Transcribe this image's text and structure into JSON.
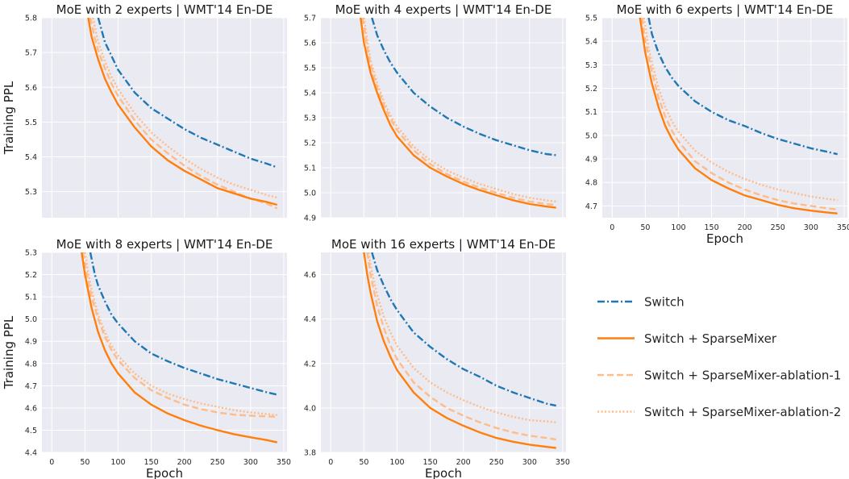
{
  "colors": {
    "switch": "#1f77b4",
    "sparsemixer": "#ff7f0e",
    "ablation1": "#ffbb88",
    "ablation2": "#ffbb88",
    "panel_bg": "#eaeaf2",
    "grid": "#ffffff"
  },
  "legend": {
    "entries": [
      {
        "label": "Switch",
        "style": "dashdot",
        "color_key": "switch"
      },
      {
        "label": "Switch + SparseMixer",
        "style": "solid",
        "color_key": "sparsemixer"
      },
      {
        "label": "Switch + SparseMixer-ablation-1",
        "style": "dashed",
        "color_key": "ablation1"
      },
      {
        "label": "Switch + SparseMixer-ablation-2",
        "style": "dotted",
        "color_key": "ablation2"
      }
    ]
  },
  "chart_data": [
    {
      "type": "line",
      "title": "MoE with 2 experts | WMT'14 En-DE",
      "xlabel": "",
      "ylabel": "Training PPL",
      "xlim": [
        -15,
        355
      ],
      "ylim": [
        5.225,
        5.8
      ],
      "xticks": [],
      "yticks": [
        5.3,
        5.4,
        5.5,
        5.6,
        5.7,
        5.8
      ],
      "ytick_labels": [
        "5.3",
        "5.4",
        "5.5",
        "5.6",
        "5.7",
        "5.8"
      ],
      "grid": true,
      "series": [
        {
          "name": "Switch",
          "x": [
            70,
            80,
            90,
            100,
            125,
            150,
            175,
            200,
            225,
            250,
            275,
            300,
            325,
            340
          ],
          "y": [
            5.8,
            5.73,
            5.69,
            5.65,
            5.585,
            5.54,
            5.51,
            5.48,
            5.455,
            5.435,
            5.415,
            5.395,
            5.38,
            5.37
          ]
        },
        {
          "name": "Switch + SparseMixer",
          "x": [
            55,
            60,
            70,
            80,
            90,
            100,
            125,
            150,
            175,
            200,
            225,
            250,
            275,
            300,
            325,
            340
          ],
          "y": [
            5.8,
            5.745,
            5.68,
            5.625,
            5.585,
            5.55,
            5.485,
            5.43,
            5.39,
            5.36,
            5.335,
            5.31,
            5.295,
            5.28,
            5.27,
            5.262
          ]
        },
        {
          "name": "Switch + SparseMixer-ablation-1",
          "x": [
            58,
            65,
            70,
            80,
            90,
            100,
            125,
            150,
            175,
            200,
            225,
            250,
            275,
            300,
            325,
            340
          ],
          "y": [
            5.8,
            5.74,
            5.705,
            5.655,
            5.61,
            5.575,
            5.505,
            5.45,
            5.41,
            5.375,
            5.345,
            5.32,
            5.3,
            5.28,
            5.265,
            5.252
          ]
        },
        {
          "name": "Switch + SparseMixer-ablation-2",
          "x": [
            62,
            70,
            80,
            90,
            100,
            125,
            150,
            175,
            200,
            225,
            250,
            275,
            300,
            325,
            340
          ],
          "y": [
            5.8,
            5.73,
            5.675,
            5.63,
            5.595,
            5.525,
            5.47,
            5.43,
            5.395,
            5.365,
            5.34,
            5.32,
            5.305,
            5.29,
            5.283
          ]
        }
      ]
    },
    {
      "type": "line",
      "title": "MoE with 4 experts | WMT'14 En-DE",
      "xlabel": "",
      "ylabel": "",
      "xlim": [
        -15,
        355
      ],
      "ylim": [
        4.9,
        5.7
      ],
      "xticks": [],
      "yticks": [
        4.9,
        5.0,
        5.1,
        5.2,
        5.3,
        5.4,
        5.5,
        5.6,
        5.7
      ],
      "ytick_labels": [
        "4.9",
        "5.0",
        "5.1",
        "5.2",
        "5.3",
        "5.4",
        "5.5",
        "5.6",
        "5.7"
      ],
      "grid": true,
      "series": [
        {
          "name": "Switch",
          "x": [
            62,
            70,
            80,
            90,
            100,
            125,
            150,
            175,
            200,
            225,
            250,
            275,
            300,
            325,
            340
          ],
          "y": [
            5.7,
            5.63,
            5.57,
            5.52,
            5.48,
            5.4,
            5.345,
            5.3,
            5.265,
            5.235,
            5.21,
            5.19,
            5.17,
            5.155,
            5.15
          ]
        },
        {
          "name": "Switch + SparseMixer",
          "x": [
            45,
            50,
            60,
            70,
            80,
            90,
            100,
            125,
            150,
            175,
            200,
            225,
            250,
            275,
            300,
            325,
            340
          ],
          "y": [
            5.7,
            5.6,
            5.48,
            5.4,
            5.33,
            5.27,
            5.225,
            5.15,
            5.1,
            5.065,
            5.035,
            5.01,
            4.99,
            4.97,
            4.955,
            4.945,
            4.94
          ]
        },
        {
          "name": "Switch + SparseMixer-ablation-1",
          "x": [
            48,
            55,
            60,
            70,
            80,
            90,
            100,
            125,
            150,
            175,
            200,
            225,
            250,
            275,
            300,
            325,
            340
          ],
          "y": [
            5.7,
            5.58,
            5.51,
            5.42,
            5.35,
            5.295,
            5.25,
            5.17,
            5.115,
            5.075,
            5.045,
            5.02,
            5.0,
            4.98,
            4.965,
            4.955,
            4.95
          ]
        },
        {
          "name": "Switch + SparseMixer-ablation-2",
          "x": [
            50,
            55,
            60,
            70,
            80,
            90,
            100,
            125,
            150,
            175,
            200,
            225,
            250,
            275,
            300,
            325,
            340
          ],
          "y": [
            5.7,
            5.61,
            5.53,
            5.44,
            5.365,
            5.31,
            5.265,
            5.185,
            5.13,
            5.09,
            5.06,
            5.035,
            5.015,
            4.995,
            4.98,
            4.97,
            4.965
          ]
        }
      ]
    },
    {
      "type": "line",
      "title": "MoE with 6 experts | WMT'14 En-DE",
      "xlabel": "Epoch",
      "ylabel": "",
      "xlim": [
        -15,
        355
      ],
      "ylim": [
        4.65,
        5.5
      ],
      "xticks": [
        0,
        50,
        100,
        150,
        200,
        250,
        300,
        350
      ],
      "xtick_labels": [
        "0",
        "50",
        "100",
        "150",
        "200",
        "250",
        "300",
        "350"
      ],
      "yticks": [
        4.7,
        4.8,
        4.9,
        5.0,
        5.1,
        5.2,
        5.3,
        5.4,
        5.5
      ],
      "ytick_labels": [
        "4.7",
        "4.8",
        "4.9",
        "5.0",
        "5.1",
        "5.2",
        "5.3",
        "5.4",
        "5.5"
      ],
      "grid": true,
      "series": [
        {
          "name": "Switch",
          "x": [
            55,
            60,
            70,
            80,
            90,
            100,
            125,
            150,
            175,
            200,
            225,
            250,
            275,
            300,
            325,
            340
          ],
          "y": [
            5.5,
            5.43,
            5.35,
            5.29,
            5.245,
            5.21,
            5.145,
            5.1,
            5.065,
            5.04,
            5.01,
            4.985,
            4.965,
            4.945,
            4.93,
            4.92
          ]
        },
        {
          "name": "Switch + SparseMixer",
          "x": [
            42,
            50,
            60,
            70,
            80,
            90,
            100,
            125,
            150,
            175,
            200,
            225,
            250,
            275,
            300,
            325,
            340
          ],
          "y": [
            5.5,
            5.35,
            5.22,
            5.12,
            5.04,
            4.985,
            4.94,
            4.86,
            4.81,
            4.775,
            4.745,
            4.725,
            4.705,
            4.69,
            4.68,
            4.672,
            4.668
          ]
        },
        {
          "name": "Switch + SparseMixer-ablation-1",
          "x": [
            45,
            50,
            60,
            70,
            80,
            90,
            100,
            125,
            150,
            175,
            200,
            225,
            250,
            275,
            300,
            325,
            340
          ],
          "y": [
            5.5,
            5.4,
            5.27,
            5.16,
            5.08,
            5.02,
            4.975,
            4.89,
            4.84,
            4.8,
            4.77,
            4.745,
            4.725,
            4.71,
            4.7,
            4.69,
            4.685
          ]
        },
        {
          "name": "Switch + SparseMixer-ablation-2",
          "x": [
            48,
            55,
            60,
            70,
            80,
            90,
            100,
            125,
            150,
            175,
            200,
            225,
            250,
            275,
            300,
            325,
            340
          ],
          "y": [
            5.5,
            5.37,
            5.31,
            5.2,
            5.12,
            5.06,
            5.015,
            4.935,
            4.885,
            4.845,
            4.815,
            4.79,
            4.77,
            4.755,
            4.74,
            4.73,
            4.725
          ]
        }
      ]
    },
    {
      "type": "line",
      "title": "MoE with 8 experts | WMT'14 En-DE",
      "xlabel": "Epoch",
      "ylabel": "Training PPL",
      "xlim": [
        -15,
        355
      ],
      "ylim": [
        4.4,
        5.3
      ],
      "xticks": [
        0,
        50,
        100,
        150,
        200,
        250,
        300,
        350
      ],
      "xtick_labels": [
        "0",
        "50",
        "100",
        "150",
        "200",
        "250",
        "300",
        "350"
      ],
      "yticks": [
        4.4,
        4.5,
        4.6,
        4.7,
        4.8,
        4.9,
        5.0,
        5.1,
        5.2,
        5.3
      ],
      "ytick_labels": [
        "4.4",
        "4.5",
        "4.6",
        "4.7",
        "4.8",
        "4.9",
        "5.0",
        "5.1",
        "5.2",
        "5.3"
      ],
      "grid": true,
      "series": [
        {
          "name": "Switch",
          "x": [
            58,
            65,
            70,
            80,
            90,
            100,
            125,
            150,
            175,
            200,
            225,
            250,
            275,
            300,
            325,
            340
          ],
          "y": [
            5.3,
            5.2,
            5.15,
            5.08,
            5.02,
            4.98,
            4.9,
            4.845,
            4.81,
            4.78,
            4.755,
            4.73,
            4.71,
            4.69,
            4.67,
            4.66
          ]
        },
        {
          "name": "Switch + SparseMixer",
          "x": [
            45,
            50,
            60,
            70,
            80,
            90,
            100,
            125,
            150,
            175,
            200,
            225,
            250,
            275,
            300,
            325,
            340
          ],
          "y": [
            5.3,
            5.2,
            5.05,
            4.94,
            4.86,
            4.8,
            4.755,
            4.67,
            4.615,
            4.575,
            4.545,
            4.52,
            4.5,
            4.482,
            4.468,
            4.455,
            4.445
          ]
        },
        {
          "name": "Switch + SparseMixer-ablation-1",
          "x": [
            47,
            55,
            60,
            70,
            80,
            90,
            100,
            125,
            150,
            175,
            200,
            225,
            250,
            275,
            300,
            325,
            340
          ],
          "y": [
            5.3,
            5.17,
            5.1,
            5.0,
            4.92,
            4.86,
            4.815,
            4.735,
            4.68,
            4.645,
            4.615,
            4.595,
            4.58,
            4.57,
            4.565,
            4.562,
            4.56
          ]
        },
        {
          "name": "Switch + SparseMixer-ablation-2",
          "x": [
            50,
            55,
            60,
            70,
            80,
            90,
            100,
            125,
            150,
            175,
            200,
            225,
            250,
            275,
            300,
            325,
            340
          ],
          "y": [
            5.3,
            5.21,
            5.13,
            5.02,
            4.94,
            4.88,
            4.835,
            4.755,
            4.7,
            4.665,
            4.64,
            4.62,
            4.605,
            4.59,
            4.58,
            4.572,
            4.568
          ]
        }
      ]
    },
    {
      "type": "line",
      "title": "MoE with 16 experts | WMT'14 En-DE",
      "xlabel": "Epoch",
      "ylabel": "",
      "xlim": [
        -15,
        355
      ],
      "ylim": [
        3.8,
        4.7
      ],
      "xticks": [
        0,
        50,
        100,
        150,
        200,
        250,
        300,
        350
      ],
      "xtick_labels": [
        "0",
        "50",
        "100",
        "150",
        "200",
        "250",
        "300",
        "350"
      ],
      "yticks": [
        3.8,
        4.0,
        4.2,
        4.4,
        4.6
      ],
      "ytick_labels": [
        "3.8",
        "4.0",
        "4.2",
        "4.4",
        "4.6"
      ],
      "grid": true,
      "series": [
        {
          "name": "Switch",
          "x": [
            62,
            70,
            80,
            90,
            100,
            125,
            150,
            175,
            200,
            225,
            250,
            275,
            300,
            325,
            340
          ],
          "y": [
            4.7,
            4.62,
            4.55,
            4.49,
            4.44,
            4.34,
            4.275,
            4.22,
            4.175,
            4.14,
            4.1,
            4.07,
            4.045,
            4.02,
            4.01
          ]
        },
        {
          "name": "Switch + SparseMixer",
          "x": [
            50,
            55,
            60,
            70,
            80,
            90,
            100,
            125,
            150,
            175,
            200,
            225,
            250,
            275,
            300,
            325,
            340
          ],
          "y": [
            4.7,
            4.6,
            4.52,
            4.39,
            4.3,
            4.23,
            4.17,
            4.07,
            4.0,
            3.955,
            3.92,
            3.89,
            3.865,
            3.848,
            3.835,
            3.825,
            3.82
          ]
        },
        {
          "name": "Switch + SparseMixer-ablation-1",
          "x": [
            55,
            60,
            70,
            80,
            90,
            100,
            125,
            150,
            175,
            200,
            225,
            250,
            275,
            300,
            325,
            340
          ],
          "y": [
            4.7,
            4.6,
            4.46,
            4.36,
            4.28,
            4.22,
            4.115,
            4.05,
            4.0,
            3.965,
            3.935,
            3.91,
            3.89,
            3.875,
            3.865,
            3.858
          ]
        },
        {
          "name": "Switch + SparseMixer-ablation-2",
          "x": [
            57,
            60,
            70,
            80,
            90,
            100,
            125,
            150,
            175,
            200,
            225,
            250,
            275,
            300,
            325,
            340
          ],
          "y": [
            4.7,
            4.64,
            4.51,
            4.41,
            4.34,
            4.28,
            4.18,
            4.115,
            4.07,
            4.035,
            4.005,
            3.98,
            3.96,
            3.945,
            3.94,
            3.935
          ]
        }
      ]
    }
  ]
}
